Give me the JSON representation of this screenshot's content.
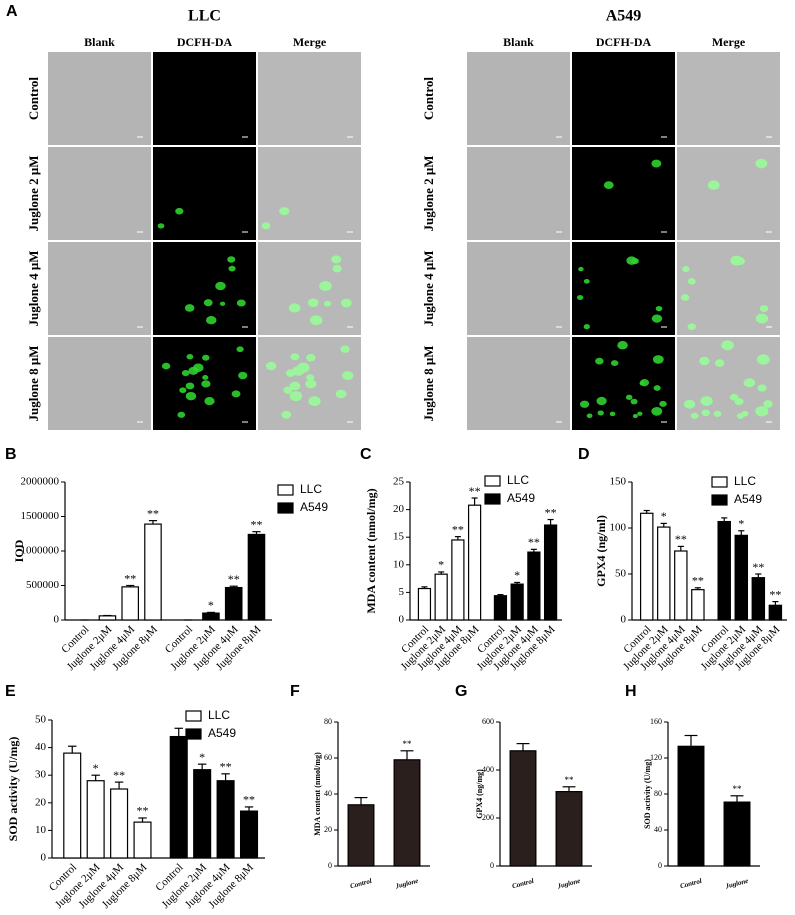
{
  "panel_a": {
    "label": "A",
    "groups": [
      {
        "title": "LLC",
        "columns": [
          "Blank",
          "DCFH-DA",
          "Merge"
        ],
        "rows": [
          "Control",
          "Juglone 2 μM",
          "Juglone 4 μM",
          "Juglone 8 μM"
        ]
      },
      {
        "title": "A549",
        "columns": [
          "Blank",
          "DCFH-DA",
          "Merge"
        ],
        "rows": [
          "Control",
          "Juglone 2 μM",
          "Juglone 4 μM",
          "Juglone 8 μM"
        ]
      }
    ]
  },
  "chart_data": [
    {
      "type": "bar",
      "panel_label": "B",
      "y_label": "IOD",
      "legend": "upper right",
      "categories": [
        "Control",
        "Juglone 2μM",
        "Juglone 4μM",
        "Juglone 8μM"
      ],
      "series": [
        {
          "name": "LLC",
          "color": "#ffffff",
          "values": [
            0,
            60000,
            480000,
            1390000
          ],
          "errors": [
            0,
            5000,
            20000,
            50000
          ],
          "annotations": [
            null,
            null,
            "**",
            "**"
          ]
        },
        {
          "name": "A549",
          "color": "#000000",
          "values": [
            0,
            100000,
            470000,
            1240000
          ],
          "errors": [
            0,
            10000,
            20000,
            40000
          ],
          "annotations": [
            null,
            "*",
            "**",
            "**"
          ]
        }
      ],
      "ylim": [
        0,
        2000000
      ],
      "yticks": [
        0,
        500000,
        1000000,
        1500000,
        2000000
      ]
    },
    {
      "type": "bar",
      "panel_label": "C",
      "y_label": "MDA content (nmol/mg)",
      "legend": "upper right",
      "categories": [
        "Control",
        "Juglone 2μM",
        "Juglone 4μM",
        "Juglone 8μM"
      ],
      "series": [
        {
          "name": "LLC",
          "color": "#ffffff",
          "values": [
            5.7,
            8.3,
            14.5,
            20.8
          ],
          "errors": [
            0.3,
            0.4,
            0.6,
            1.3
          ],
          "annotations": [
            null,
            "*",
            "**",
            "**"
          ]
        },
        {
          "name": "A549",
          "color": "#000000",
          "values": [
            4.4,
            6.5,
            12.3,
            17.2
          ],
          "errors": [
            0.2,
            0.3,
            0.5,
            1.0
          ],
          "annotations": [
            null,
            "*",
            "**",
            "**"
          ]
        }
      ],
      "ylim": [
        0,
        25
      ],
      "yticks": [
        0,
        5,
        10,
        15,
        20,
        25
      ]
    },
    {
      "type": "bar",
      "panel_label": "D",
      "y_label": "GPX4 (ng/ml)",
      "legend": "upper right",
      "categories": [
        "Control",
        "Juglone 2μM",
        "Juglone 4μM",
        "Juglone 8μM"
      ],
      "series": [
        {
          "name": "LLC",
          "color": "#ffffff",
          "values": [
            116,
            101,
            75,
            33
          ],
          "errors": [
            3,
            4,
            5,
            2
          ],
          "annotations": [
            null,
            "*",
            "**",
            "**"
          ]
        },
        {
          "name": "A549",
          "color": "#000000",
          "values": [
            107,
            92,
            46,
            16
          ],
          "errors": [
            4,
            5,
            4,
            4
          ],
          "annotations": [
            null,
            "*",
            "**",
            "**"
          ]
        }
      ],
      "ylim": [
        0,
        150
      ],
      "yticks": [
        0,
        50,
        100,
        150
      ]
    },
    {
      "type": "bar",
      "panel_label": "E",
      "y_label": "SOD activity (U/mg)",
      "legend": "upper right",
      "categories": [
        "Control",
        "Juglone 2μM",
        "Juglone 4μM",
        "Juglone 8μM"
      ],
      "series": [
        {
          "name": "LLC",
          "color": "#ffffff",
          "values": [
            38,
            28,
            25,
            13
          ],
          "errors": [
            2.5,
            2,
            2.5,
            1.5
          ],
          "annotations": [
            null,
            "*",
            "**",
            "**"
          ]
        },
        {
          "name": "A549",
          "color": "#000000",
          "values": [
            44,
            32,
            28,
            17
          ],
          "errors": [
            3,
            2,
            2.5,
            1.5
          ],
          "annotations": [
            null,
            "*",
            "**",
            "**"
          ]
        }
      ],
      "ylim": [
        0,
        50
      ],
      "yticks": [
        0,
        10,
        20,
        30,
        40,
        50
      ]
    },
    {
      "type": "bar",
      "panel_label": "F",
      "y_label": "MDA content (nmol/mg)",
      "categories": [
        "Control",
        "Juglone"
      ],
      "color": "#2a1f1c",
      "values": [
        34,
        59
      ],
      "errors": [
        4,
        5
      ],
      "annotations": [
        null,
        "**"
      ],
      "ylim": [
        0,
        80
      ],
      "yticks": [
        0,
        20,
        40,
        60,
        80
      ]
    },
    {
      "type": "bar",
      "panel_label": "G",
      "y_label": "GPX4 (ng/mg)",
      "categories": [
        "Control",
        "Juglone"
      ],
      "color": "#2a1f1c",
      "values": [
        480,
        310
      ],
      "errors": [
        30,
        20
      ],
      "annotations": [
        null,
        "**"
      ],
      "ylim": [
        0,
        600
      ],
      "yticks": [
        0,
        200,
        400,
        600
      ]
    },
    {
      "type": "bar",
      "panel_label": "H",
      "y_label": "SOD activity (U/mg)",
      "categories": [
        "Control",
        "Juglone"
      ],
      "color": "#000000",
      "values": [
        133,
        71
      ],
      "errors": [
        12,
        7
      ],
      "annotations": [
        null,
        "**"
      ],
      "ylim": [
        0,
        160
      ],
      "yticks": [
        0,
        40,
        80,
        120,
        160
      ]
    }
  ]
}
